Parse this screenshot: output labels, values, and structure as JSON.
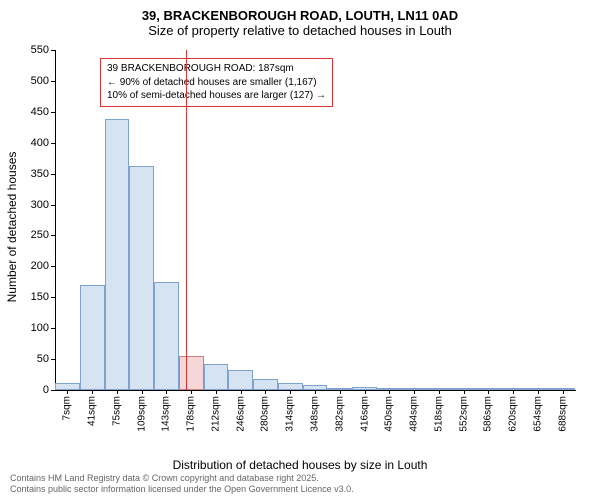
{
  "chart": {
    "title_main": "39, BRACKENBOROUGH ROAD, LOUTH, LN11 0AD",
    "title_sub": "Size of property relative to detached houses in Louth",
    "ylabel": "Number of detached houses",
    "xlabel": "Distribution of detached houses by size in Louth",
    "ylim": [
      0,
      550
    ],
    "yticks": [
      0,
      50,
      100,
      150,
      200,
      250,
      300,
      350,
      400,
      450,
      500,
      550
    ],
    "xticks": [
      "7sqm",
      "41sqm",
      "75sqm",
      "109sqm",
      "143sqm",
      "178sqm",
      "212sqm",
      "246sqm",
      "280sqm",
      "314sqm",
      "348sqm",
      "382sqm",
      "416sqm",
      "450sqm",
      "484sqm",
      "518sqm",
      "552sqm",
      "586sqm",
      "620sqm",
      "654sqm",
      "688sqm"
    ],
    "bar_color_fill": "#d6e3f3",
    "bar_color_border": "#7fa3cc",
    "highlight_bar_fill": "#f6d6d6",
    "highlight_bar_border": "#cc7f7f",
    "reference_line_color": "#dd3333",
    "reference_line_x_index": 5.3,
    "bars": [
      {
        "value": 12,
        "highlight": false
      },
      {
        "value": 170,
        "highlight": false
      },
      {
        "value": 438,
        "highlight": false
      },
      {
        "value": 362,
        "highlight": false
      },
      {
        "value": 175,
        "highlight": false
      },
      {
        "value": 55,
        "highlight": true
      },
      {
        "value": 42,
        "highlight": false
      },
      {
        "value": 32,
        "highlight": false
      },
      {
        "value": 18,
        "highlight": false
      },
      {
        "value": 12,
        "highlight": false
      },
      {
        "value": 8,
        "highlight": false
      },
      {
        "value": 4,
        "highlight": false
      },
      {
        "value": 5,
        "highlight": false
      },
      {
        "value": 2,
        "highlight": false
      },
      {
        "value": 2,
        "highlight": false
      },
      {
        "value": 1,
        "highlight": false
      },
      {
        "value": 0,
        "highlight": false
      },
      {
        "value": 1,
        "highlight": false
      },
      {
        "value": 0,
        "highlight": false
      },
      {
        "value": 1,
        "highlight": false
      },
      {
        "value": 0,
        "highlight": false
      }
    ],
    "annotation": {
      "line1": "39 BRACKENBOROUGH ROAD: 187sqm",
      "line2": "← 90% of detached houses are smaller (1,167)",
      "line3": "10% of semi-detached houses are larger (127) →",
      "border_color": "#dd3333"
    },
    "footer_line1": "Contains HM Land Registry data © Crown copyright and database right 2025.",
    "footer_line2": "Contains public sector information licensed under the Open Government Licence v3.0."
  }
}
